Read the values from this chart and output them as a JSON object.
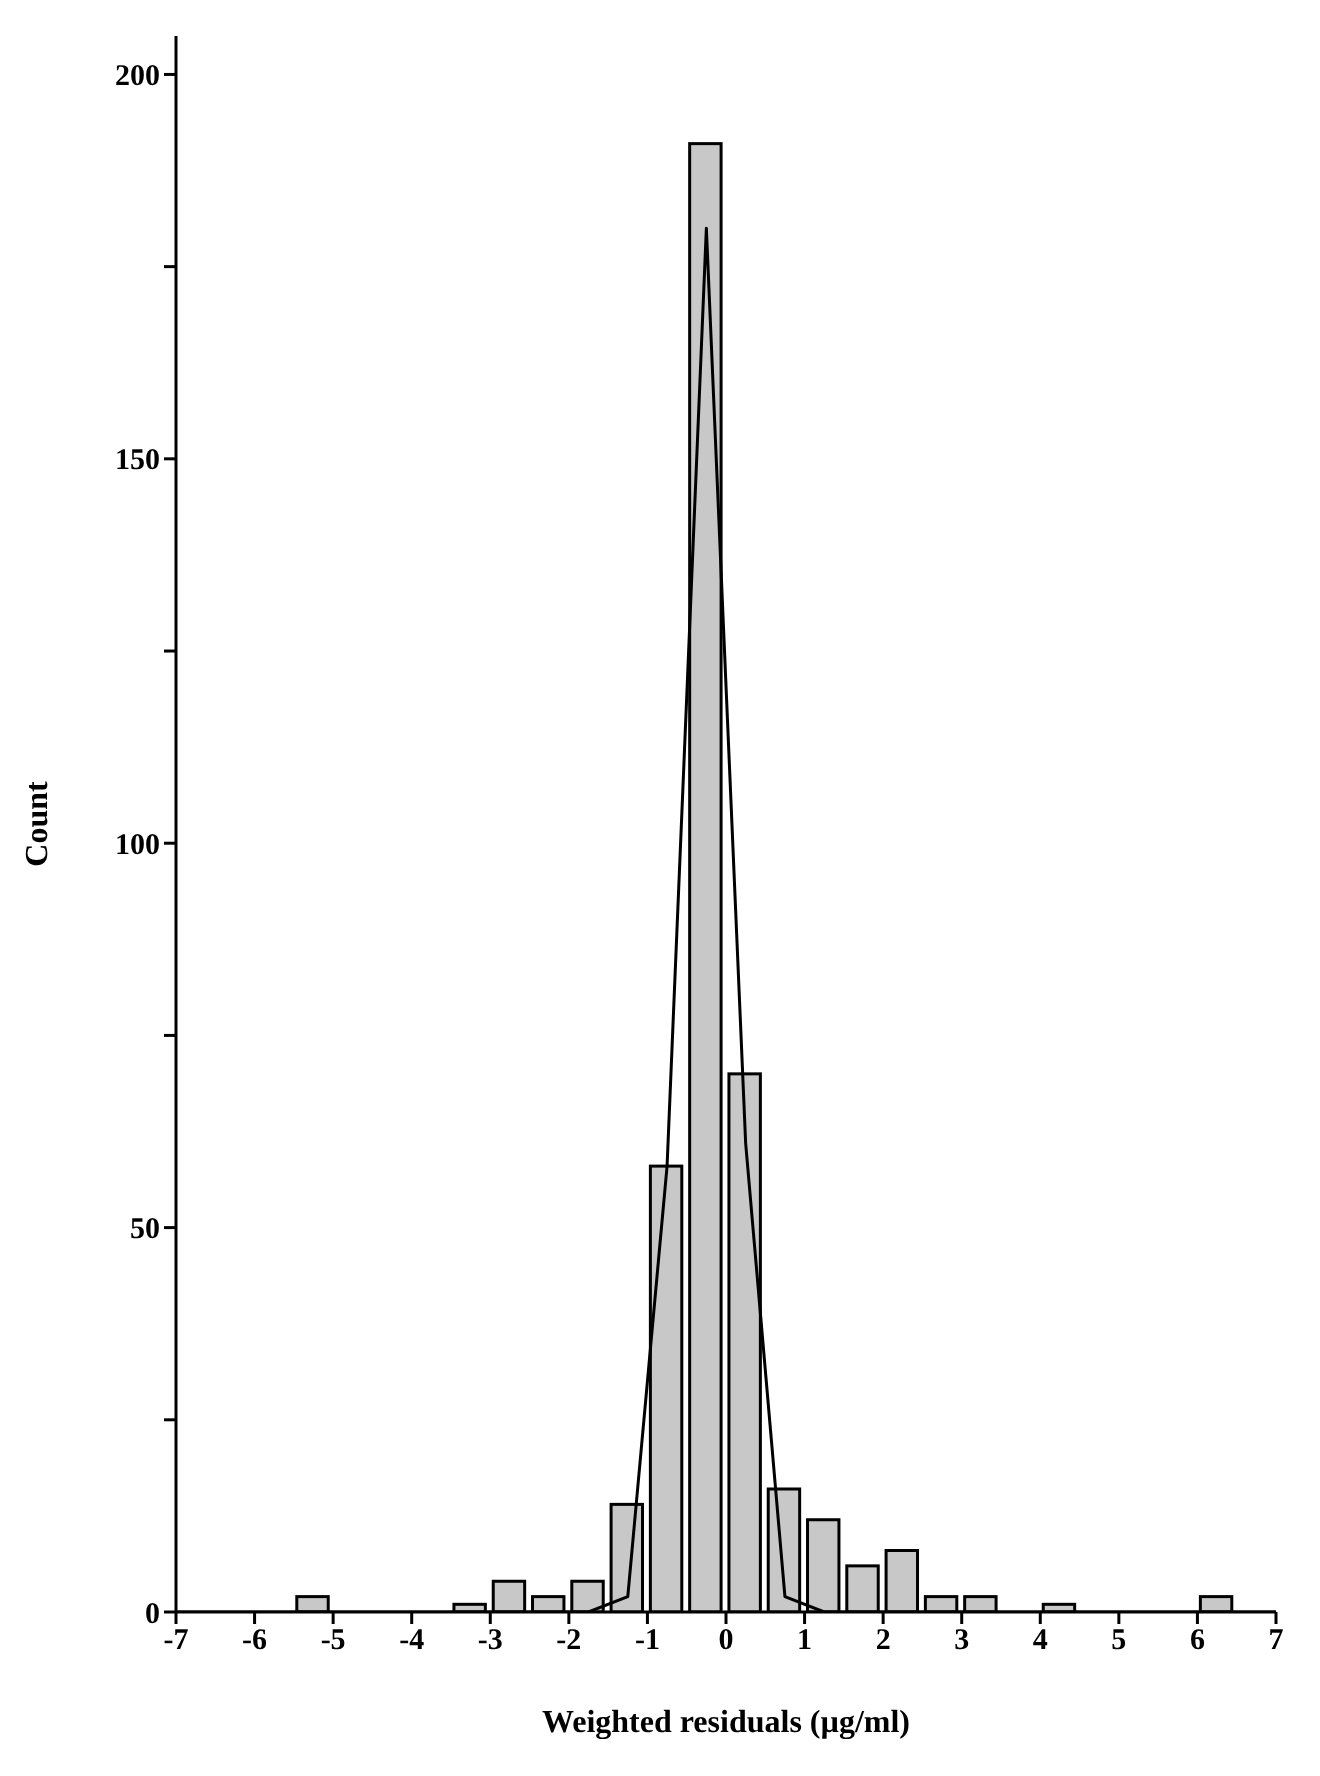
{
  "chart_data": {
    "type": "histogram",
    "xlabel": "Weighted residuals (µg/ml)",
    "ylabel": "Count",
    "bins": [
      -7,
      -6.5,
      -6,
      -5.5,
      -5,
      -4.5,
      -4,
      -3.5,
      -3,
      -2.5,
      -2,
      -1.5,
      -1,
      -0.5,
      0,
      0.5,
      1,
      1.5,
      2,
      2.5,
      3,
      3.5,
      4,
      4.5,
      5,
      5.5,
      6,
      6.5,
      7
    ],
    "values": [
      0,
      0,
      0,
      2,
      0,
      0,
      0,
      1,
      4,
      2,
      4,
      14,
      58,
      191,
      70,
      16,
      12,
      6,
      8,
      2,
      2,
      0,
      1,
      0,
      0,
      0,
      2,
      0
    ],
    "color": "#c8c8c8",
    "series": [
      {
        "type": "line",
        "color": "#000000",
        "x": [
          -7,
          -1.75,
          -1.25,
          -0.75,
          -0.25,
          0.25,
          0.75,
          1.25,
          7
        ],
        "values": [
          0,
          0,
          2,
          58,
          180,
          61,
          2,
          0,
          0
        ]
      }
    ],
    "xlim": [
      -7,
      7
    ],
    "xticks": [
      -7,
      -6,
      -5,
      -4,
      -3,
      -2,
      -1,
      0,
      1,
      2,
      3,
      4,
      5,
      6,
      7
    ],
    "ylim": [
      0,
      205
    ],
    "yticks": [
      0,
      {
        "value": 25,
        "label": null
      },
      50,
      {
        "value": 75,
        "label": null
      },
      100,
      {
        "value": 125,
        "label": null
      },
      150,
      {
        "value": 175,
        "label": null
      },
      200
    ],
    "grid": false,
    "legend": false,
    "marker": "none"
  }
}
